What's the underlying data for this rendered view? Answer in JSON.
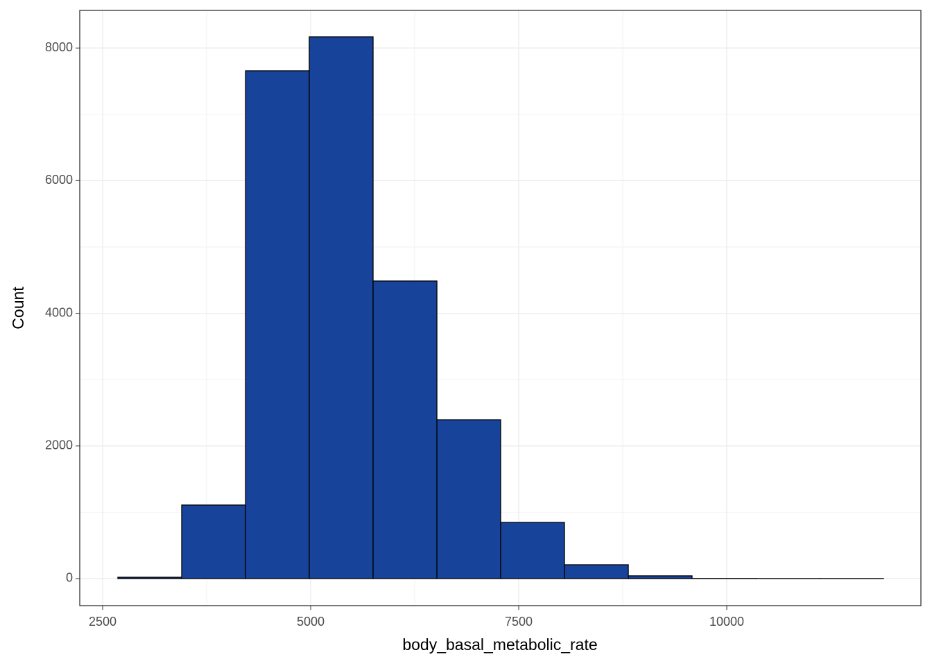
{
  "chart_data": {
    "type": "histogram",
    "x_label": "body_basal_metabolic_rate",
    "y_label": "Count",
    "bins": [
      2683,
      3450,
      4217,
      4983,
      5750,
      6517,
      7283,
      8050,
      8817,
      9583,
      10350,
      11117,
      11883
    ],
    "values": [
      20,
      1109,
      7657,
      8169,
      4487,
      2395,
      847,
      209,
      42,
      2,
      1,
      1
    ],
    "color": "#18439a",
    "edge_color": "#000000",
    "xlim": [
      2225,
      12333
    ],
    "xticks": [
      2500,
      5000,
      7500,
      10000
    ],
    "ylim": [
      -408,
      8567
    ],
    "yticks": [
      0,
      2000,
      4000,
      6000,
      8000
    ],
    "grid": true
  }
}
